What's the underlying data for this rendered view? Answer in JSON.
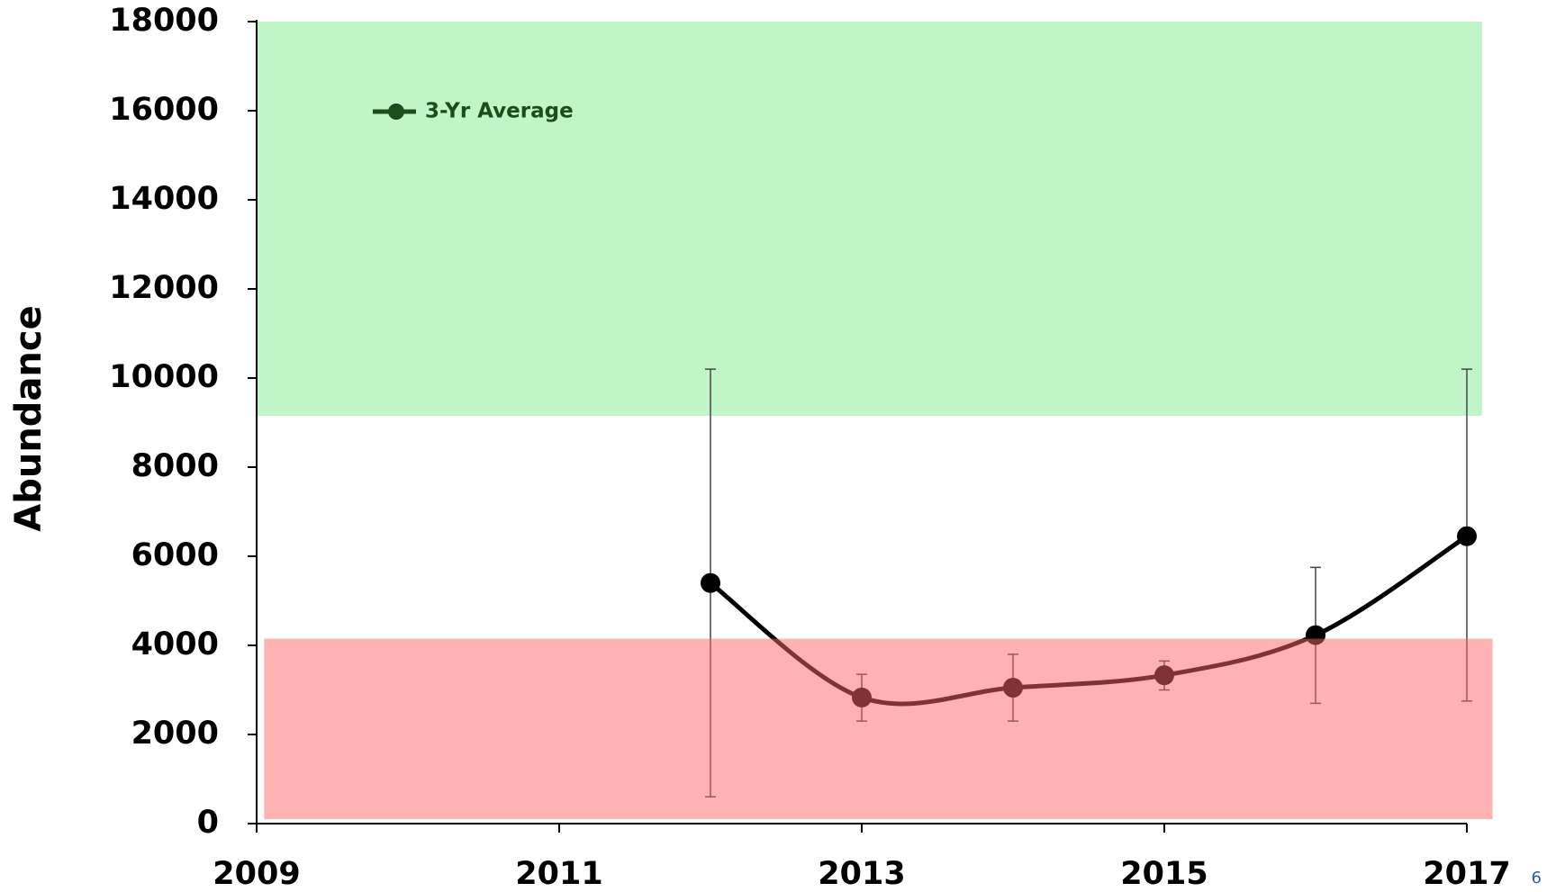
{
  "chart_data": {
    "type": "line",
    "y_label": "Abundance",
    "x": [
      2012,
      2013,
      2014,
      2015,
      2016,
      2017
    ],
    "series": [
      {
        "name": "3-Yr Average",
        "color": "#000000",
        "legend_color": "#1a4d1a",
        "values": [
          5400,
          2830,
          3050,
          3330,
          4230,
          6450
        ],
        "lower": [
          600,
          2300,
          2300,
          3000,
          2700,
          2750
        ],
        "upper": [
          10200,
          3350,
          3800,
          3650,
          5750,
          10200
        ]
      }
    ],
    "bands": [
      {
        "x": [
          2009,
          2017.1
        ],
        "y": [
          9150,
          18000
        ],
        "color": "#c1f5c8",
        "opacity": 1
      },
      {
        "x": [
          2009.05,
          2017.17
        ],
        "y": [
          100,
          4150
        ],
        "color": "#ff6666",
        "opacity": 0.5
      }
    ],
    "xlim": [
      2009,
      2017
    ],
    "xticks": [
      2009,
      2011,
      2013,
      2015,
      2017
    ],
    "ylim": [
      0,
      18000
    ],
    "yticks": [
      0,
      2000,
      4000,
      6000,
      8000,
      10000,
      12000,
      14000,
      16000,
      18000
    ],
    "legend": "upper left",
    "page_number": "6"
  }
}
